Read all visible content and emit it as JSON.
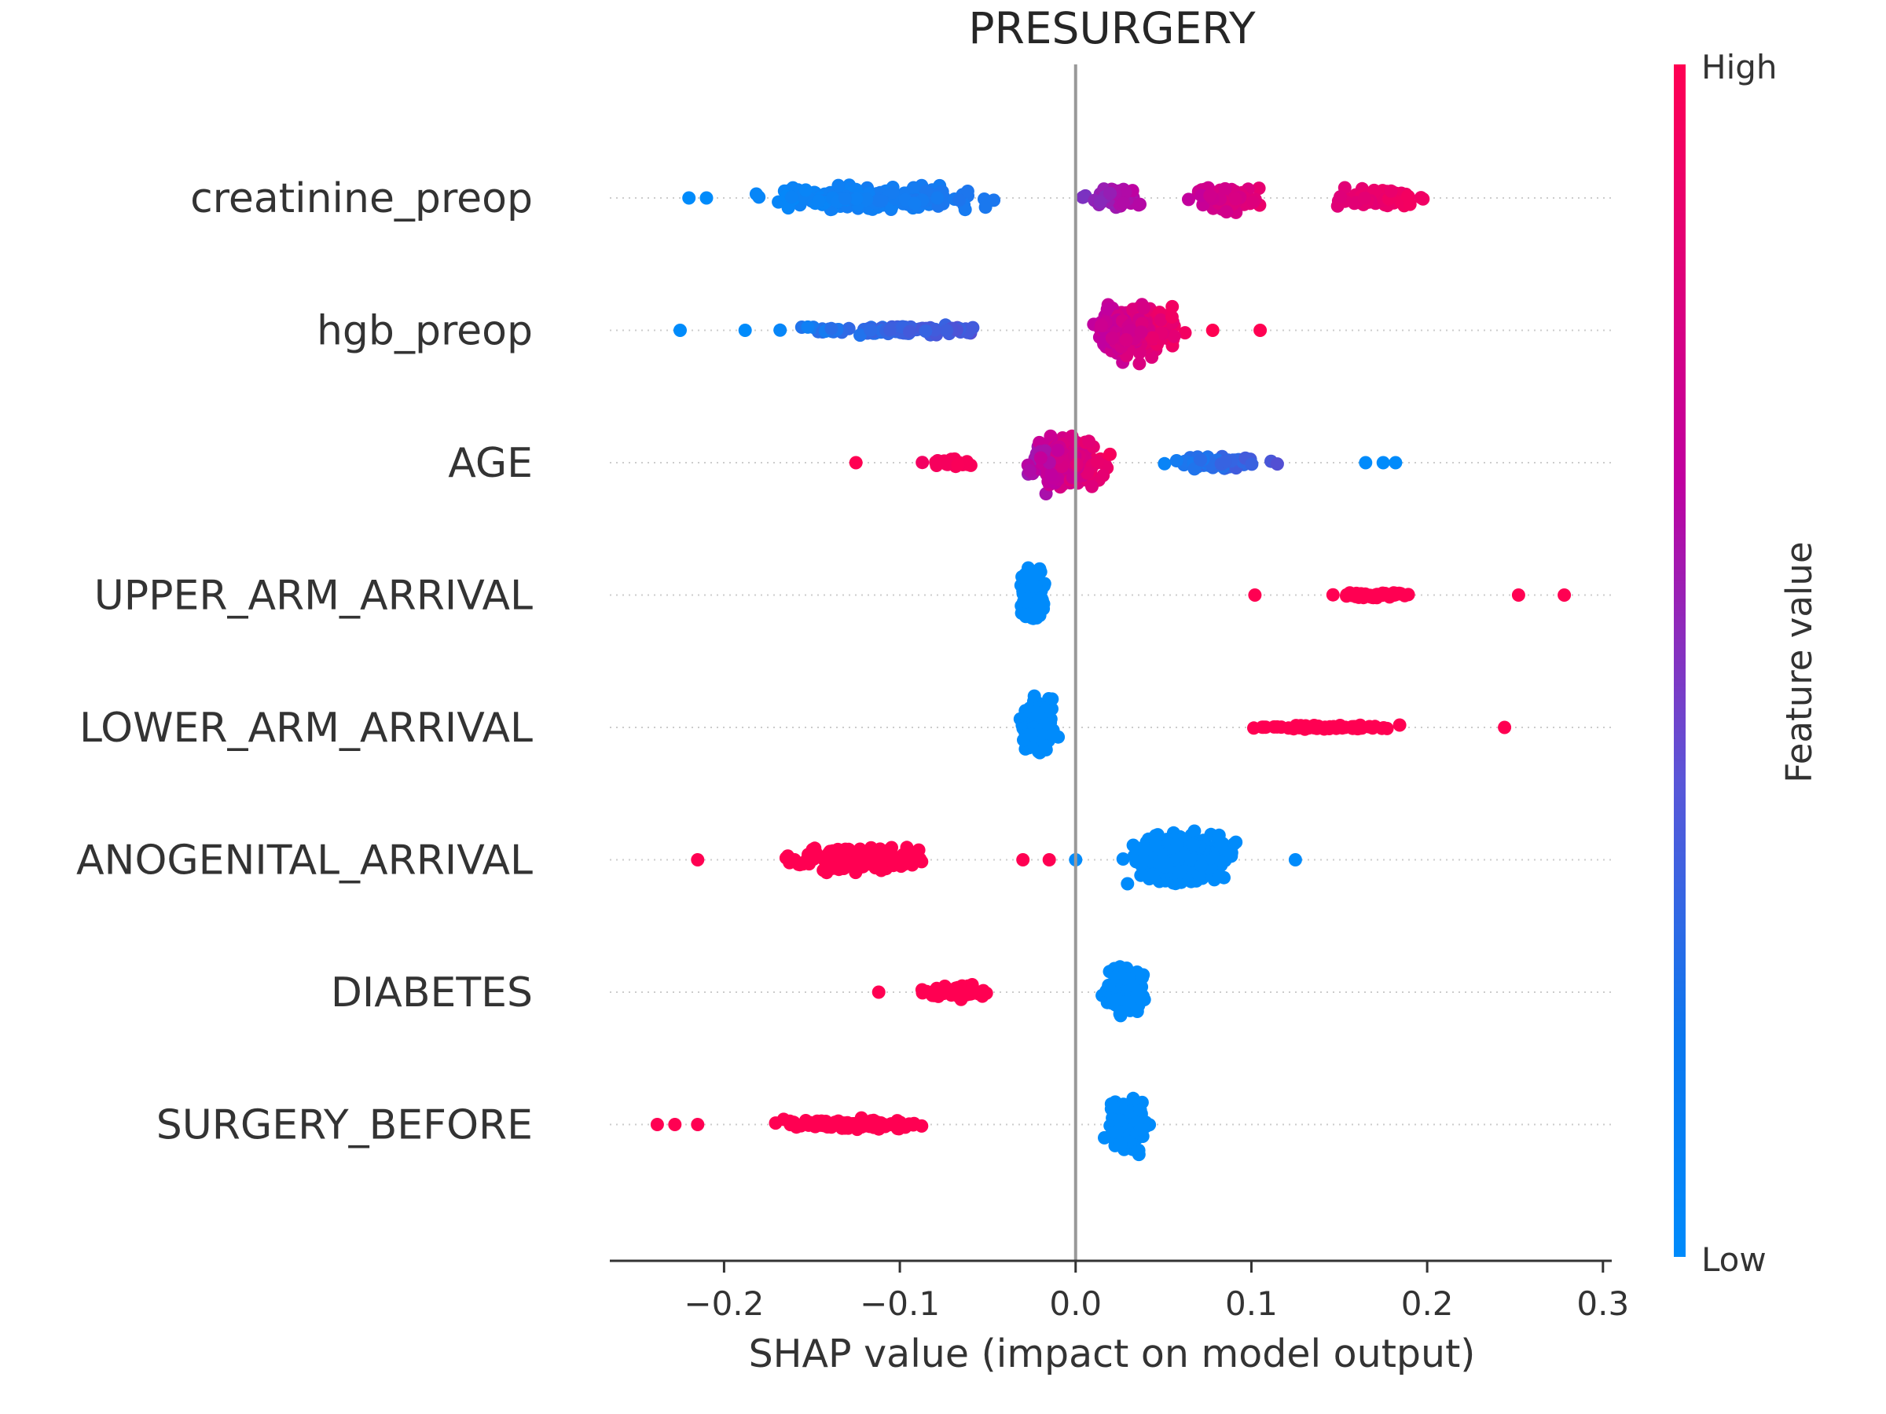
{
  "chart_data": {
    "type": "scatter",
    "subtype": "shap-beeswarm",
    "title": "PRESURGERY",
    "xlabel": "SHAP value (impact on model output)",
    "xlim": [
      -0.265,
      0.305
    ],
    "x_ticks": [
      -0.2,
      -0.1,
      0.0,
      0.1,
      0.2,
      0.3
    ],
    "x_tick_labels": [
      "−0.2",
      "−0.1",
      "0.0",
      "0.1",
      "0.2",
      "0.3"
    ],
    "zero_line": 0.0,
    "colorbar": {
      "title": "Feature value",
      "high_label": "High",
      "low_label": "Low",
      "low_color": "#008bfb",
      "high_color": "#ff0052",
      "mid_color": "#c000a0"
    },
    "features": [
      {
        "name": "creatinine_preop",
        "groups": [
          {
            "min": -0.22,
            "max": -0.01,
            "n": 260,
            "spread": 0.5,
            "c0": 0.0,
            "c1": 0.1
          },
          {
            "min": -0.01,
            "max": 0.05,
            "n": 80,
            "spread": 0.45,
            "c0": 0.3,
            "c1": 0.6
          },
          {
            "min": 0.05,
            "max": 0.12,
            "n": 80,
            "spread": 0.45,
            "c0": 0.5,
            "c1": 0.9
          },
          {
            "min": 0.12,
            "max": 0.225,
            "n": 90,
            "spread": 0.4,
            "c0": 0.7,
            "c1": 1.0
          }
        ],
        "outliers": [
          [
            -0.22,
            0.0
          ],
          [
            -0.21,
            0.0
          ]
        ]
      },
      {
        "name": "hgb_preop",
        "groups": [
          {
            "min": -0.2,
            "max": -0.005,
            "n": 90,
            "spread": 0.2,
            "c0": 0.0,
            "c1": 0.3
          },
          {
            "min": -0.005,
            "max": 0.075,
            "n": 320,
            "spread": 1.0,
            "c0": 0.45,
            "c1": 1.0
          }
        ],
        "outliers": [
          [
            -0.225,
            0.0
          ],
          [
            -0.188,
            0.0
          ],
          [
            0.078,
            1.0
          ],
          [
            0.105,
            1.0
          ]
        ]
      },
      {
        "name": "AGE",
        "groups": [
          {
            "min": -0.1,
            "max": -0.04,
            "n": 30,
            "spread": 0.15,
            "c0": 0.9,
            "c1": 1.0
          },
          {
            "min": -0.04,
            "max": 0.03,
            "n": 300,
            "spread": 1.0,
            "c0": 0.35,
            "c1": 1.0
          },
          {
            "min": 0.03,
            "max": 0.13,
            "n": 80,
            "spread": 0.25,
            "c0": 0.0,
            "c1": 0.25
          }
        ],
        "outliers": [
          [
            -0.125,
            1.0
          ],
          [
            0.165,
            0.0
          ],
          [
            0.175,
            0.0
          ],
          [
            0.182,
            0.0
          ]
        ]
      },
      {
        "name": "UPPER_ARM_ARRIVAL",
        "groups": [
          {
            "min": -0.037,
            "max": -0.012,
            "n": 240,
            "spread": 1.0,
            "c0": 0.0,
            "c1": 0.0
          },
          {
            "min": 0.12,
            "max": 0.225,
            "n": 55,
            "spread": 0.12,
            "c0": 1.0,
            "c1": 1.0
          }
        ],
        "outliers": [
          [
            0.102,
            1.0
          ],
          [
            0.252,
            1.0
          ],
          [
            0.278,
            1.0
          ]
        ]
      },
      {
        "name": "LOWER_ARM_ARRIVAL",
        "groups": [
          {
            "min": -0.037,
            "max": -0.006,
            "n": 200,
            "spread": 1.0,
            "c0": 0.0,
            "c1": 0.0
          },
          {
            "min": 0.065,
            "max": 0.22,
            "n": 65,
            "spread": 0.1,
            "c0": 1.0,
            "c1": 1.0
          }
        ],
        "outliers": [
          [
            0.244,
            1.0
          ]
        ]
      },
      {
        "name": "ANOGENITAL_ARRIVAL",
        "groups": [
          {
            "min": -0.2,
            "max": -0.05,
            "n": 160,
            "spread": 0.55,
            "c0": 1.0,
            "c1": 1.0
          },
          {
            "min": 0.01,
            "max": 0.11,
            "n": 400,
            "spread": 1.0,
            "c0": 0.0,
            "c1": 0.0
          }
        ],
        "outliers": [
          [
            -0.215,
            1.0
          ],
          [
            -0.03,
            1.0
          ],
          [
            -0.015,
            1.0
          ],
          [
            0.0,
            0.0
          ],
          [
            0.125,
            0.0
          ]
        ]
      },
      {
        "name": "DIABETES",
        "groups": [
          {
            "min": -0.11,
            "max": -0.025,
            "n": 80,
            "spread": 0.25,
            "c0": 1.0,
            "c1": 1.0
          },
          {
            "min": 0.006,
            "max": 0.05,
            "n": 160,
            "spread": 1.0,
            "c0": 0.0,
            "c1": 0.0
          }
        ],
        "outliers": [
          [
            -0.112,
            1.0
          ]
        ]
      },
      {
        "name": "SURGERY_BEFORE",
        "groups": [
          {
            "min": -0.2,
            "max": -0.05,
            "n": 110,
            "spread": 0.2,
            "c0": 1.0,
            "c1": 1.0
          },
          {
            "min": 0.01,
            "max": 0.05,
            "n": 260,
            "spread": 1.0,
            "c0": 0.0,
            "c1": 0.0
          }
        ],
        "outliers": [
          [
            -0.238,
            1.0
          ],
          [
            -0.228,
            1.0
          ],
          [
            -0.215,
            1.0
          ]
        ]
      }
    ]
  }
}
